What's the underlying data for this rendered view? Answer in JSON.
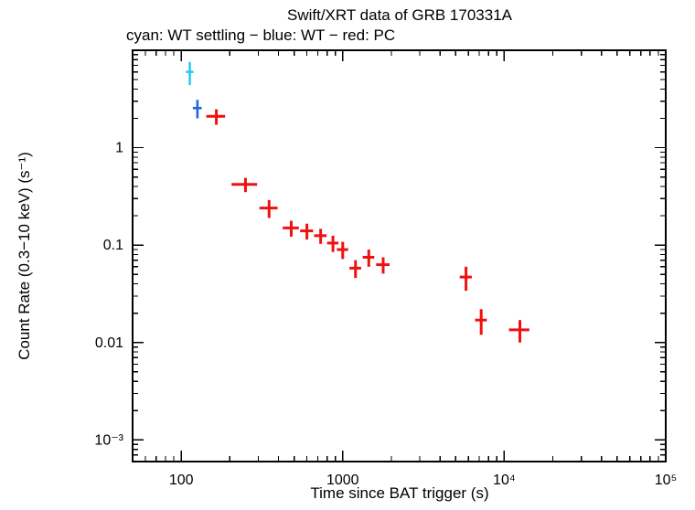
{
  "chart_data": {
    "type": "scatter",
    "title": "Swift/XRT data of GRB 170331A",
    "subtitle": "cyan: WT settling − blue: WT − red: PC",
    "xlabel": "Time since BAT trigger (s)",
    "ylabel": "Count Rate (0.3−10 keV) (s⁻¹)",
    "xscale": "log",
    "yscale": "log",
    "xlim": [
      50,
      100000
    ],
    "ylim": [
      0.0006,
      10
    ],
    "grid": false,
    "legend": "in-subtitle",
    "xticks": [
      {
        "v": 100,
        "label": "100"
      },
      {
        "v": 1000,
        "label": "1000"
      },
      {
        "v": 10000,
        "label": "10⁴"
      },
      {
        "v": 100000,
        "label": "10⁵"
      }
    ],
    "yticks": [
      {
        "v": 1,
        "label": "1"
      },
      {
        "v": 0.1,
        "label": "0.1"
      },
      {
        "v": 0.01,
        "label": "0.01"
      },
      {
        "v": 0.001,
        "label": "10⁻³"
      }
    ],
    "series": [
      {
        "name": "WT settling",
        "color": "#2ec9ee",
        "line_width": 2.6,
        "points": [
          {
            "t": 113,
            "terr": 6,
            "rate": 6.0,
            "rerr": 1.6
          }
        ]
      },
      {
        "name": "WT",
        "color": "#2266dd",
        "line_width": 2.6,
        "points": [
          {
            "t": 126,
            "terr": 8,
            "rate": 2.55,
            "rerr": 0.55
          }
        ]
      },
      {
        "name": "PC",
        "color": "#f01010",
        "line_width": 3,
        "points": [
          {
            "t": 165,
            "terr": 22,
            "rate": 2.1,
            "rerr": 0.38
          },
          {
            "t": 250,
            "terr": 45,
            "rate": 0.42,
            "rerr": 0.07
          },
          {
            "t": 350,
            "terr": 45,
            "rate": 0.24,
            "rerr": 0.05
          },
          {
            "t": 480,
            "terr": 55,
            "rate": 0.15,
            "rerr": 0.028
          },
          {
            "t": 600,
            "terr": 55,
            "rate": 0.14,
            "rerr": 0.026
          },
          {
            "t": 730,
            "terr": 65,
            "rate": 0.125,
            "rerr": 0.022
          },
          {
            "t": 870,
            "terr": 70,
            "rate": 0.105,
            "rerr": 0.02
          },
          {
            "t": 1000,
            "terr": 80,
            "rate": 0.09,
            "rerr": 0.018
          },
          {
            "t": 1200,
            "terr": 100,
            "rate": 0.058,
            "rerr": 0.012
          },
          {
            "t": 1450,
            "terr": 120,
            "rate": 0.075,
            "rerr": 0.015
          },
          {
            "t": 1780,
            "terr": 170,
            "rate": 0.063,
            "rerr": 0.012
          },
          {
            "t": 5800,
            "terr": 500,
            "rate": 0.047,
            "rerr": 0.013
          },
          {
            "t": 7200,
            "terr": 600,
            "rate": 0.017,
            "rerr": 0.005
          },
          {
            "t": 12500,
            "terr": 1800,
            "rate": 0.0135,
            "rerr": 0.0035
          }
        ]
      }
    ]
  }
}
